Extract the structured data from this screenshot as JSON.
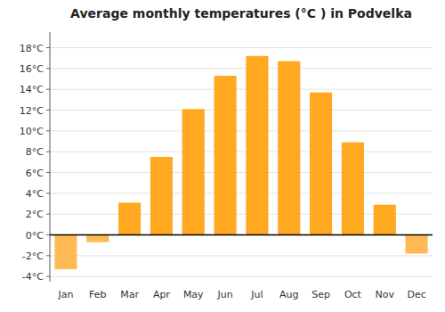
{
  "chart_data": {
    "type": "bar",
    "title": "Average monthly temperatures (°C ) in Podvelka",
    "categories": [
      "Jan",
      "Feb",
      "Mar",
      "Apr",
      "May",
      "Jun",
      "Jul",
      "Aug",
      "Sep",
      "Oct",
      "Nov",
      "Dec"
    ],
    "values": [
      -3.3,
      -0.7,
      3.1,
      7.5,
      12.1,
      15.3,
      17.2,
      16.7,
      13.7,
      8.9,
      2.9,
      -1.8
    ],
    "colors": [
      "#FFBA55",
      "#FFBA55",
      "#FFA820",
      "#FFA820",
      "#FFA820",
      "#FFA820",
      "#FFA820",
      "#FFA820",
      "#FFA820",
      "#FFA820",
      "#FFA820",
      "#FFBA55"
    ],
    "ylim": [
      -4.5,
      19.5
    ],
    "yticks": [
      {
        "value": -4,
        "label": "-4°C"
      },
      {
        "value": -2,
        "label": "-2°C"
      },
      {
        "value": 0,
        "label": "0°C"
      },
      {
        "value": 2,
        "label": "2°C"
      },
      {
        "value": 4,
        "label": "4°C"
      },
      {
        "value": 6,
        "label": "6°C"
      },
      {
        "value": 8,
        "label": "8°C"
      },
      {
        "value": 10,
        "label": "10°C"
      },
      {
        "value": 12,
        "label": "12°C"
      },
      {
        "value": 14,
        "label": "14°C"
      },
      {
        "value": 16,
        "label": "16°C"
      },
      {
        "value": 18,
        "label": "18°C"
      }
    ],
    "grid": true
  }
}
